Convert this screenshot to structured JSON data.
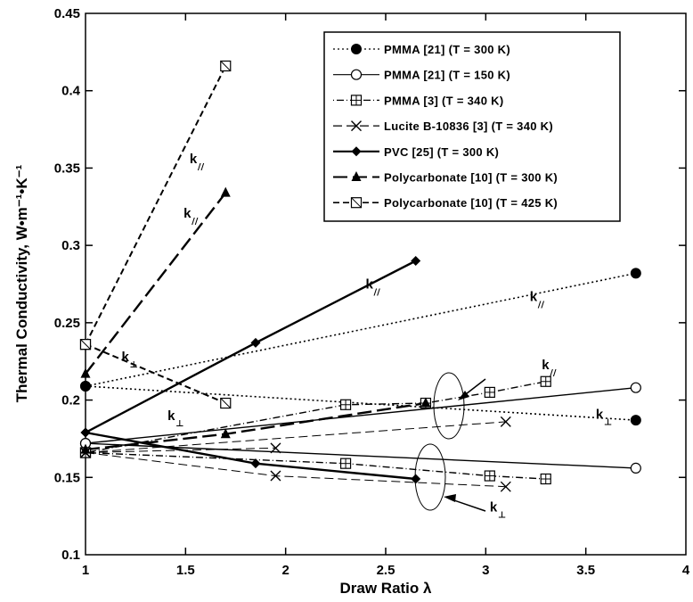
{
  "chart_data": {
    "type": "line",
    "title": "",
    "xlabel": "Draw Ratio λ",
    "ylabel": "Thermal Conductivity, W•m⁻¹•K⁻¹",
    "xlim": [
      1,
      4
    ],
    "ylim": [
      0.1,
      0.45
    ],
    "xticks": [
      "1",
      "1.5",
      "2",
      "2.5",
      "3",
      "3.5",
      "4"
    ],
    "yticks": [
      "0.1",
      "0.15",
      "0.2",
      "0.25",
      "0.3",
      "0.35",
      "0.4",
      "0.45"
    ],
    "grid": false,
    "legend_position": "top-right",
    "legend": [
      {
        "label": "PMMA [21] (T = 300 K)",
        "marker": "filled-circle",
        "dash": "dotted"
      },
      {
        "label": "PMMA [21] (T = 150 K)",
        "marker": "open-circle",
        "dash": "solid"
      },
      {
        "label": "PMMA [3] (T = 340 K)",
        "marker": "crossed-square",
        "dash": "dotted-solid"
      },
      {
        "label": "Lucite B-10836 [3] (T = 340 K)",
        "marker": "x",
        "dash": "long-dash"
      },
      {
        "label": "PVC [25] (T = 300 K)",
        "marker": "filled-diamond",
        "dash": "thick-solid"
      },
      {
        "label": "Polycarbonate [10] (T = 300 K)",
        "marker": "filled-triangle",
        "dash": "long-dash"
      },
      {
        "label": "Polycarbonate [10] (T = 425 K)",
        "marker": "slashed-square",
        "dash": "dashed"
      }
    ],
    "series": [
      {
        "key": "pmma300_par",
        "legend": 0,
        "points": [
          [
            1,
            0.209
          ],
          [
            3.75,
            0.282
          ]
        ]
      },
      {
        "key": "pmma300_perp",
        "legend": 0,
        "points": [
          [
            1,
            0.209
          ],
          [
            3.75,
            0.187
          ]
        ]
      },
      {
        "key": "pmma150_par",
        "legend": 1,
        "points": [
          [
            1,
            0.172
          ],
          [
            3.75,
            0.208
          ]
        ]
      },
      {
        "key": "pmma150_perp",
        "legend": 1,
        "points": [
          [
            1,
            0.172
          ],
          [
            3.75,
            0.156
          ]
        ]
      },
      {
        "key": "pmma340_par",
        "legend": 2,
        "points": [
          [
            1,
            0.166
          ],
          [
            2.3,
            0.197
          ],
          [
            2.7,
            0.198
          ],
          [
            3.02,
            0.205
          ],
          [
            3.3,
            0.212
          ]
        ]
      },
      {
        "key": "pmma340_perp",
        "legend": 2,
        "points": [
          [
            1,
            0.166
          ],
          [
            2.3,
            0.159
          ],
          [
            3.02,
            0.151
          ],
          [
            3.3,
            0.149
          ]
        ]
      },
      {
        "key": "lucite_par",
        "legend": 3,
        "points": [
          [
            1,
            0.166
          ],
          [
            3.1,
            0.186
          ]
        ]
      },
      {
        "key": "lucite_perp",
        "legend": 3,
        "points": [
          [
            1,
            0.166
          ],
          [
            1.95,
            0.169
          ]
        ]
      },
      {
        "key": "lucite_perp2",
        "legend": 3,
        "points": [
          [
            1,
            0.166
          ],
          [
            1.95,
            0.151
          ],
          [
            3.1,
            0.144
          ]
        ]
      },
      {
        "key": "pvc_par",
        "legend": 4,
        "points": [
          [
            1,
            0.179
          ],
          [
            1.85,
            0.237
          ],
          [
            2.65,
            0.29
          ]
        ]
      },
      {
        "key": "pvc_perp",
        "legend": 4,
        "points": [
          [
            1,
            0.179
          ],
          [
            1.85,
            0.159
          ],
          [
            2.65,
            0.149
          ]
        ]
      },
      {
        "key": "pc300_par",
        "legend": 5,
        "points": [
          [
            1,
            0.217
          ],
          [
            1.7,
            0.334
          ]
        ]
      },
      {
        "key": "pc300_perp",
        "legend": 5,
        "points": [
          [
            1,
            0.168
          ],
          [
            1.7,
            0.178
          ],
          [
            2.7,
            0.198
          ]
        ]
      },
      {
        "key": "pc425_par",
        "legend": 6,
        "points": [
          [
            1,
            0.236
          ],
          [
            1.7,
            0.416
          ]
        ]
      },
      {
        "key": "pc425_perp",
        "legend": 6,
        "points": [
          [
            1,
            0.236
          ],
          [
            1.7,
            0.198
          ]
        ]
      }
    ],
    "annotations": [
      {
        "text": "k",
        "sub": "//",
        "x": 1.52,
        "y": 0.353
      },
      {
        "text": "k",
        "sub": "//",
        "x": 1.49,
        "y": 0.318
      },
      {
        "text": "k",
        "sub": "//",
        "x": 2.4,
        "y": 0.272
      },
      {
        "text": "k",
        "sub": "//",
        "x": 3.22,
        "y": 0.264
      },
      {
        "text": "k",
        "sub": "//",
        "x": 3.28,
        "y": 0.22
      },
      {
        "text": "k",
        "sub": "⊥",
        "x": 1.18,
        "y": 0.225
      },
      {
        "text": "k",
        "sub": "⊥",
        "x": 1.41,
        "y": 0.187
      },
      {
        "text": "k",
        "sub": "⊥",
        "x": 3.55,
        "y": 0.188
      },
      {
        "text": "k",
        "sub": "⊥",
        "x": 3.02,
        "y": 0.128
      }
    ]
  }
}
